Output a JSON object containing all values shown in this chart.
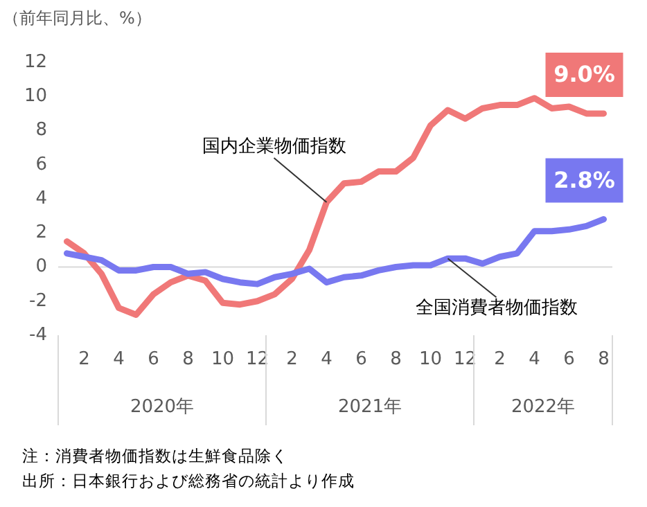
{
  "chart_data": {
    "type": "line",
    "ylabel": "（前年同月比、%）",
    "categories": [
      null,
      "2",
      null,
      "4",
      null,
      "6",
      null,
      "8",
      null,
      "10",
      null,
      "12",
      null,
      "2",
      null,
      "4",
      null,
      "6",
      null,
      "8",
      null,
      "10",
      null,
      "12",
      null,
      "2",
      null,
      "4",
      null,
      "6",
      null,
      "8"
    ],
    "series": [
      {
        "name": "国内企業物価指数",
        "color": "#f07878",
        "values": [
          1.5,
          0.8,
          -0.4,
          -2.4,
          -2.8,
          -1.6,
          -0.9,
          -0.5,
          -0.8,
          -2.1,
          -2.2,
          -2.0,
          -1.6,
          -0.7,
          1.0,
          3.8,
          4.9,
          5.0,
          5.6,
          5.6,
          6.4,
          8.3,
          9.2,
          8.7,
          9.3,
          9.5,
          9.5,
          9.9,
          9.3,
          9.4,
          9.0,
          9.0
        ],
        "value_labels": [
          null,
          null,
          null,
          null,
          null,
          null,
          null,
          null,
          null,
          null,
          null,
          null,
          null,
          null,
          null,
          null,
          null,
          null,
          null,
          null,
          null,
          null,
          null,
          null,
          null,
          null,
          null,
          null,
          null,
          null,
          null,
          "9.0%"
        ]
      },
      {
        "name": "全国消費者物価指数",
        "color": "#7878f0",
        "values": [
          0.8,
          0.6,
          0.4,
          -0.2,
          -0.2,
          0.0,
          0.0,
          -0.4,
          -0.3,
          -0.7,
          -0.9,
          -1.0,
          -0.6,
          -0.4,
          -0.1,
          -0.9,
          -0.6,
          -0.5,
          -0.2,
          0.0,
          0.1,
          0.1,
          0.5,
          0.5,
          0.2,
          0.6,
          0.8,
          2.1,
          2.1,
          2.2,
          2.4,
          2.8
        ],
        "value_labels": [
          null,
          null,
          null,
          null,
          null,
          null,
          null,
          null,
          null,
          null,
          null,
          null,
          null,
          null,
          null,
          null,
          null,
          null,
          null,
          null,
          null,
          null,
          null,
          null,
          null,
          null,
          null,
          null,
          null,
          null,
          null,
          "2.8%"
        ]
      }
    ],
    "ylim": [
      -4,
      12
    ],
    "yticks": [
      -4,
      -2,
      0,
      2,
      4,
      6,
      8,
      10,
      12
    ],
    "ref_lines": [
      {
        "axis": "y",
        "value": 0,
        "color": "#d9d9d9"
      }
    ],
    "grid": false,
    "legend": false,
    "marker": "none",
    "line_style": "solid",
    "annotations": [
      {
        "text": "2020年"
      },
      {
        "text": "2021年"
      },
      {
        "text": "2022年"
      },
      "注：消費者物価指数は生鮮食品除く",
      "出所：日本銀行および総務省の統計より作成"
    ]
  }
}
